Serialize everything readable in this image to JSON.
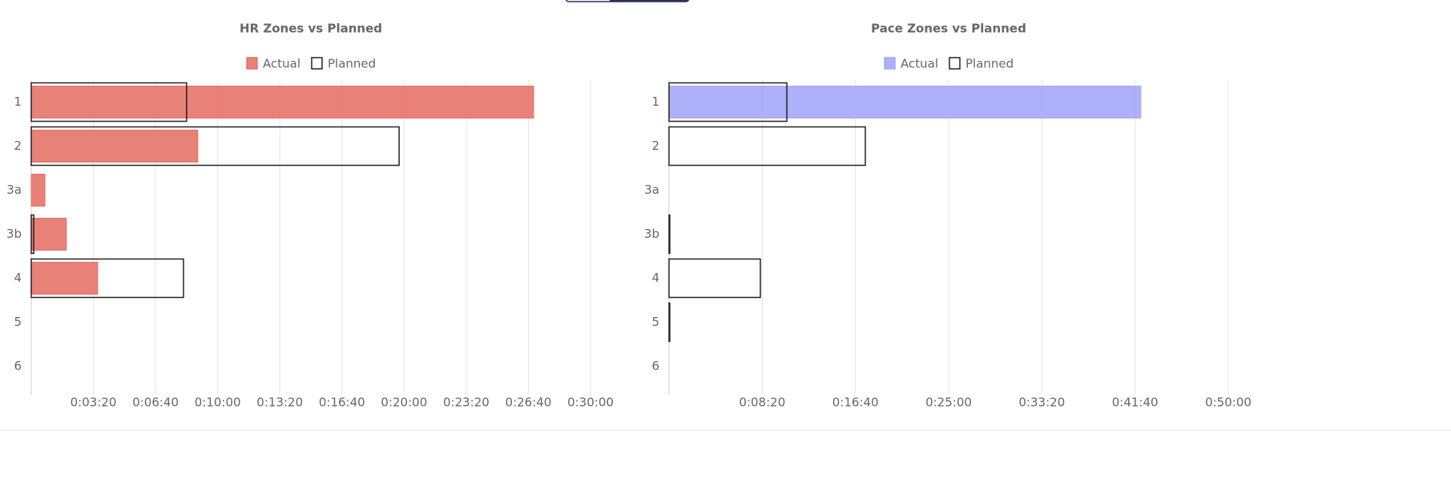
{
  "chart_data": [
    {
      "type": "bar",
      "title": "HR Zones vs Planned",
      "categories": [
        "1",
        "2",
        "3a",
        "3b",
        "4",
        "5",
        "6"
      ],
      "series": [
        {
          "name": "Actual",
          "color": "#e57368",
          "fill": true,
          "values": [
            1617,
            536,
            44,
            113,
            214,
            0,
            0
          ]
        },
        {
          "name": "Planned",
          "color": "#222222",
          "fill": false,
          "values": [
            500,
            1184,
            0,
            8,
            490,
            0,
            0
          ]
        }
      ],
      "xlim": [
        0,
        1800
      ],
      "xticks": [
        {
          "value": 200,
          "label": "0:03:20"
        },
        {
          "value": 400,
          "label": "0:06:40"
        },
        {
          "value": 600,
          "label": "0:10:00"
        },
        {
          "value": 800,
          "label": "0:13:20"
        },
        {
          "value": 1000,
          "label": "0:16:40"
        },
        {
          "value": 1200,
          "label": "0:20:00"
        },
        {
          "value": 1400,
          "label": "0:23:20"
        },
        {
          "value": 1600,
          "label": "0:26:40"
        },
        {
          "value": 1800,
          "label": "0:30:00"
        }
      ],
      "grid": true
    },
    {
      "type": "bar",
      "title": "Pace Zones vs Planned",
      "categories": [
        "1",
        "2",
        "3a",
        "3b",
        "4",
        "5",
        "6"
      ],
      "series": [
        {
          "name": "Actual",
          "color": "#a3a8f8",
          "fill": true,
          "values": [
            2531,
            0,
            0,
            0,
            0,
            0,
            0
          ]
        },
        {
          "name": "Planned",
          "color": "#222222",
          "fill": false,
          "values": [
            632,
            1053,
            0,
            4,
            490,
            4,
            0
          ]
        }
      ],
      "xlim": [
        0,
        3000
      ],
      "xticks": [
        {
          "value": 500,
          "label": "0:08:20"
        },
        {
          "value": 1000,
          "label": "0:16:40"
        },
        {
          "value": 1500,
          "label": "0:25:00"
        },
        {
          "value": 2000,
          "label": "0:33:20"
        },
        {
          "value": 2500,
          "label": "0:41:40"
        },
        {
          "value": 3000,
          "label": "0:50:00"
        }
      ],
      "grid": true
    }
  ]
}
